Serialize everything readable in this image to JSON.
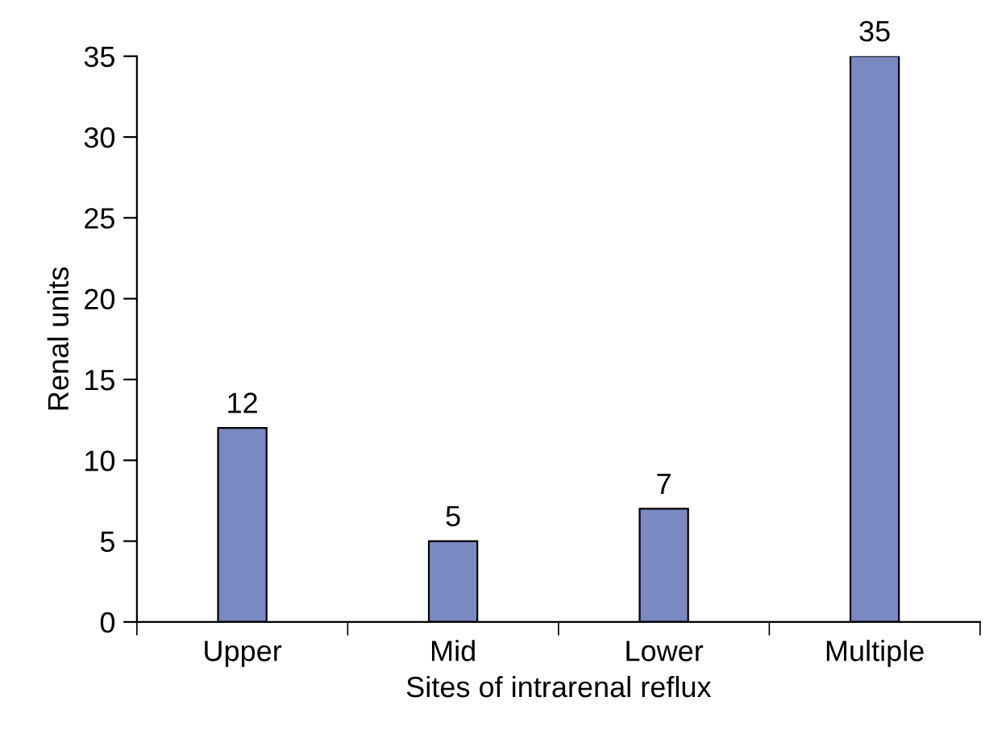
{
  "chart_data": {
    "type": "bar",
    "xlabel": "Sites of intrarenal reflux",
    "ylabel": "Renal units",
    "categories": [
      "Upper",
      "Mid",
      "Lower",
      "Multiple"
    ],
    "values": [
      12,
      5,
      7,
      35
    ],
    "color": "#7b89c3",
    "ylim": [
      0,
      35
    ],
    "yticks": [
      0,
      5,
      10,
      15,
      20,
      25,
      30,
      35
    ],
    "data_labels": true,
    "grid": false
  }
}
